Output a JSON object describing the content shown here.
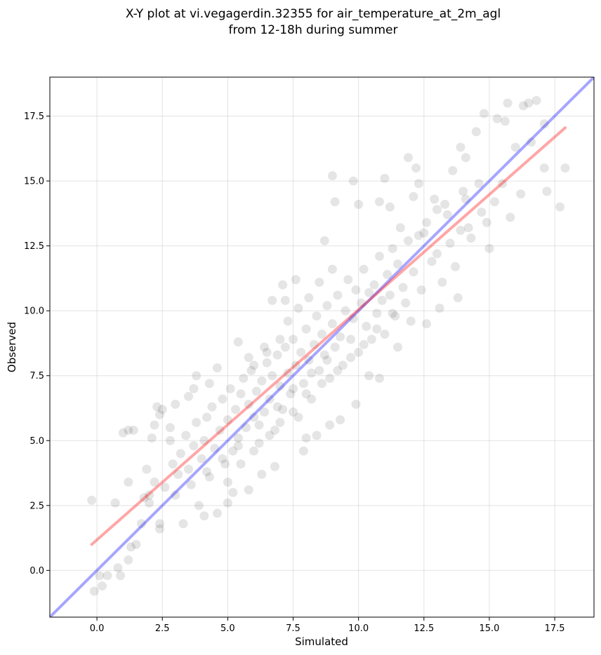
{
  "chart_data": {
    "type": "scatter",
    "title_lines": [
      "X-Y plot at vi.vegagerdin.32355 for air_temperature_at_2m_agl",
      "from 12-18h during summer"
    ],
    "xlabel": "Simulated",
    "ylabel": "Observed",
    "xlim": [
      -1.8,
      19.0
    ],
    "ylim": [
      -1.8,
      19.0
    ],
    "xticks": [
      0.0,
      2.5,
      5.0,
      7.5,
      10.0,
      12.5,
      15.0,
      17.5
    ],
    "yticks": [
      0.0,
      2.5,
      5.0,
      7.5,
      10.0,
      12.5,
      15.0,
      17.5
    ],
    "xtick_labels": [
      "0.0",
      "2.5",
      "5.0",
      "7.5",
      "10.0",
      "12.5",
      "15.0",
      "17.5"
    ],
    "ytick_labels": [
      "0.0",
      "2.5",
      "5.0",
      "7.5",
      "10.0",
      "12.5",
      "15.0",
      "17.5"
    ],
    "grid": true,
    "point_color": "#000000",
    "point_alpha": 0.1,
    "lines": [
      {
        "kind": "identity",
        "color": "#0000ff",
        "alpha": 0.35,
        "x": [
          -1.8,
          19.0
        ],
        "y": [
          -1.8,
          19.0
        ]
      },
      {
        "kind": "regression",
        "color": "#ff0000",
        "alpha": 0.35,
        "x": [
          -0.2,
          17.9
        ],
        "y": [
          1.0,
          17.05
        ]
      }
    ],
    "points": [
      [
        -0.2,
        2.7
      ],
      [
        -0.1,
        -0.8
      ],
      [
        0.1,
        -0.2
      ],
      [
        0.2,
        -0.6
      ],
      [
        0.4,
        -0.2
      ],
      [
        0.7,
        2.6
      ],
      [
        0.8,
        0.1
      ],
      [
        0.9,
        -0.2
      ],
      [
        1.0,
        5.3
      ],
      [
        1.2,
        5.4
      ],
      [
        1.4,
        5.4
      ],
      [
        1.2,
        3.4
      ],
      [
        1.3,
        0.9
      ],
      [
        1.2,
        0.4
      ],
      [
        1.5,
        1.0
      ],
      [
        1.7,
        1.8
      ],
      [
        1.8,
        2.8
      ],
      [
        2.0,
        2.6
      ],
      [
        1.9,
        3.9
      ],
      [
        2.1,
        5.1
      ],
      [
        2.2,
        5.6
      ],
      [
        2.3,
        6.3
      ],
      [
        2.4,
        6.0
      ],
      [
        2.5,
        6.2
      ],
      [
        2.4,
        1.8
      ],
      [
        2.4,
        1.6
      ],
      [
        2.8,
        5.5
      ],
      [
        2.8,
        5.0
      ],
      [
        3.0,
        6.4
      ],
      [
        3.3,
        1.8
      ],
      [
        3.5,
        6.7
      ],
      [
        3.7,
        7.0
      ],
      [
        3.8,
        7.5
      ],
      [
        3.9,
        2.5
      ],
      [
        4.1,
        2.1
      ],
      [
        4.3,
        7.2
      ],
      [
        4.6,
        7.8
      ],
      [
        4.6,
        2.2
      ],
      [
        5.0,
        2.6
      ],
      [
        5.2,
        3.0
      ],
      [
        5.4,
        8.8
      ],
      [
        5.8,
        8.2
      ],
      [
        5.8,
        3.1
      ],
      [
        6.3,
        3.7
      ],
      [
        6.4,
        8.6
      ],
      [
        6.7,
        10.4
      ],
      [
        6.8,
        4.0
      ],
      [
        7.1,
        11.0
      ],
      [
        7.2,
        10.4
      ],
      [
        7.6,
        11.2
      ],
      [
        7.9,
        4.6
      ],
      [
        8.0,
        5.1
      ],
      [
        8.4,
        5.2
      ],
      [
        8.7,
        12.7
      ],
      [
        8.9,
        5.6
      ],
      [
        9.0,
        15.2
      ],
      [
        9.1,
        14.2
      ],
      [
        9.3,
        5.8
      ],
      [
        9.8,
        15.0
      ],
      [
        9.9,
        6.4
      ],
      [
        10.0,
        14.1
      ],
      [
        10.4,
        7.5
      ],
      [
        10.8,
        7.4
      ],
      [
        10.8,
        14.2
      ],
      [
        11.0,
        15.1
      ],
      [
        11.2,
        14.0
      ],
      [
        11.5,
        8.6
      ],
      [
        11.6,
        13.2
      ],
      [
        11.9,
        15.9
      ],
      [
        12.1,
        14.4
      ],
      [
        12.2,
        15.5
      ],
      [
        12.3,
        14.9
      ],
      [
        12.5,
        13.0
      ],
      [
        12.6,
        9.5
      ],
      [
        12.9,
        14.3
      ],
      [
        13.0,
        13.9
      ],
      [
        13.1,
        10.1
      ],
      [
        13.3,
        14.1
      ],
      [
        13.6,
        15.4
      ],
      [
        13.8,
        10.5
      ],
      [
        13.9,
        16.3
      ],
      [
        14.0,
        14.6
      ],
      [
        14.1,
        15.9
      ],
      [
        14.2,
        13.2
      ],
      [
        14.5,
        16.9
      ],
      [
        14.7,
        13.8
      ],
      [
        14.8,
        17.6
      ],
      [
        15.0,
        12.4
      ],
      [
        15.3,
        17.4
      ],
      [
        15.5,
        14.9
      ],
      [
        15.7,
        18.0
      ],
      [
        15.8,
        13.6
      ],
      [
        16.0,
        16.3
      ],
      [
        16.2,
        14.5
      ],
      [
        16.3,
        17.9
      ],
      [
        16.5,
        18.0
      ],
      [
        16.6,
        16.5
      ],
      [
        16.8,
        18.1
      ],
      [
        17.1,
        15.5
      ],
      [
        17.1,
        17.2
      ],
      [
        17.2,
        14.6
      ],
      [
        17.7,
        14.0
      ],
      [
        17.9,
        15.5
      ],
      [
        15.6,
        17.3
      ],
      [
        2.0,
        2.9
      ],
      [
        2.2,
        3.4
      ],
      [
        2.6,
        3.2
      ],
      [
        2.9,
        4.1
      ],
      [
        3.1,
        3.7
      ],
      [
        3.2,
        4.5
      ],
      [
        3.4,
        5.2
      ],
      [
        3.5,
        3.9
      ],
      [
        3.7,
        4.8
      ],
      [
        3.8,
        5.7
      ],
      [
        4.0,
        4.3
      ],
      [
        4.1,
        5.0
      ],
      [
        4.2,
        5.9
      ],
      [
        4.3,
        3.6
      ],
      [
        4.4,
        6.3
      ],
      [
        4.5,
        4.7
      ],
      [
        4.7,
        5.4
      ],
      [
        4.8,
        6.6
      ],
      [
        4.9,
        4.1
      ],
      [
        5.0,
        5.8
      ],
      [
        5.1,
        7.0
      ],
      [
        5.2,
        4.6
      ],
      [
        5.3,
        6.2
      ],
      [
        5.4,
        5.1
      ],
      [
        5.5,
        6.8
      ],
      [
        5.6,
        7.4
      ],
      [
        5.7,
        5.5
      ],
      [
        5.8,
        6.4
      ],
      [
        5.9,
        7.7
      ],
      [
        6.0,
        5.9
      ],
      [
        6.1,
        6.9
      ],
      [
        6.2,
        4.9
      ],
      [
        6.3,
        7.3
      ],
      [
        6.4,
        6.1
      ],
      [
        6.5,
        8.0
      ],
      [
        6.6,
        6.6
      ],
      [
        6.7,
        7.5
      ],
      [
        6.8,
        5.4
      ],
      [
        6.9,
        8.3
      ],
      [
        7.0,
        7.1
      ],
      [
        7.1,
        6.2
      ],
      [
        7.2,
        8.6
      ],
      [
        7.3,
        7.6
      ],
      [
        7.4,
        6.8
      ],
      [
        7.5,
        8.9
      ],
      [
        7.6,
        7.9
      ],
      [
        7.7,
        5.9
      ],
      [
        7.8,
        8.4
      ],
      [
        7.9,
        7.2
      ],
      [
        8.0,
        9.3
      ],
      [
        8.1,
        8.1
      ],
      [
        8.2,
        6.6
      ],
      [
        8.3,
        8.7
      ],
      [
        8.4,
        9.8
      ],
      [
        8.5,
        7.7
      ],
      [
        8.6,
        9.1
      ],
      [
        8.7,
        8.3
      ],
      [
        8.8,
        10.2
      ],
      [
        8.9,
        7.4
      ],
      [
        9.0,
        9.5
      ],
      [
        9.1,
        8.6
      ],
      [
        9.2,
        10.6
      ],
      [
        9.3,
        9.0
      ],
      [
        9.4,
        7.9
      ],
      [
        9.5,
        10.0
      ],
      [
        9.6,
        11.2
      ],
      [
        9.7,
        8.9
      ],
      [
        9.8,
        9.7
      ],
      [
        9.9,
        10.8
      ],
      [
        10.0,
        8.4
      ],
      [
        10.1,
        10.3
      ],
      [
        10.2,
        11.6
      ],
      [
        10.3,
        9.4
      ],
      [
        10.4,
        10.7
      ],
      [
        10.5,
        8.9
      ],
      [
        10.6,
        11.0
      ],
      [
        10.7,
        9.9
      ],
      [
        10.8,
        12.1
      ],
      [
        10.9,
        10.4
      ],
      [
        11.0,
        9.1
      ],
      [
        11.1,
        11.4
      ],
      [
        11.2,
        10.6
      ],
      [
        11.3,
        12.4
      ],
      [
        11.4,
        9.8
      ],
      [
        11.5,
        11.8
      ],
      [
        11.7,
        10.9
      ],
      [
        11.9,
        12.7
      ],
      [
        12.0,
        9.6
      ],
      [
        12.1,
        11.5
      ],
      [
        12.3,
        12.9
      ],
      [
        12.4,
        10.8
      ],
      [
        12.6,
        13.4
      ],
      [
        12.8,
        11.9
      ],
      [
        13.0,
        12.2
      ],
      [
        13.2,
        11.1
      ],
      [
        13.4,
        13.7
      ],
      [
        13.5,
        12.6
      ],
      [
        13.7,
        11.7
      ],
      [
        13.9,
        13.1
      ],
      [
        14.1,
        14.3
      ],
      [
        14.3,
        12.8
      ],
      [
        14.6,
        14.9
      ],
      [
        14.9,
        13.4
      ],
      [
        15.2,
        14.2
      ],
      [
        6.0,
        7.9
      ],
      [
        6.5,
        8.4
      ],
      [
        7.0,
        8.9
      ],
      [
        7.3,
        9.6
      ],
      [
        7.7,
        10.1
      ],
      [
        8.1,
        10.5
      ],
      [
        8.5,
        11.1
      ],
      [
        9.0,
        11.6
      ],
      [
        5.0,
        3.4
      ],
      [
        5.5,
        4.1
      ],
      [
        6.0,
        4.6
      ],
      [
        6.6,
        5.2
      ],
      [
        7.0,
        5.7
      ],
      [
        7.5,
        6.1
      ],
      [
        8.0,
        6.8
      ],
      [
        8.6,
        7.2
      ],
      [
        9.2,
        7.7
      ],
      [
        9.7,
        8.2
      ],
      [
        10.2,
        8.7
      ],
      [
        10.7,
        9.3
      ],
      [
        11.3,
        9.9
      ],
      [
        11.8,
        10.3
      ],
      [
        3.0,
        2.9
      ],
      [
        3.6,
        3.3
      ],
      [
        4.2,
        3.8
      ],
      [
        4.8,
        4.3
      ],
      [
        5.4,
        4.8
      ],
      [
        6.2,
        5.6
      ],
      [
        6.9,
        6.3
      ],
      [
        7.5,
        7.0
      ],
      [
        8.2,
        7.6
      ],
      [
        8.8,
        8.1
      ]
    ]
  }
}
